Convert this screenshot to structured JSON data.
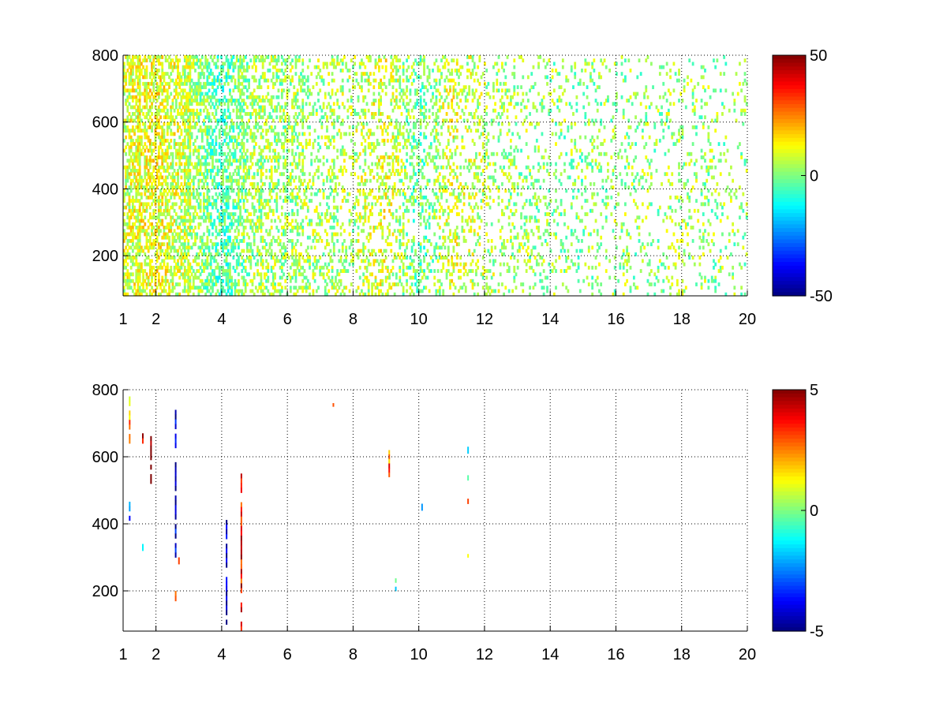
{
  "chart_data": [
    {
      "type": "heatmap",
      "title": "",
      "xlabel": "",
      "ylabel": "",
      "xlim": [
        1,
        20
      ],
      "ylim": [
        80,
        800
      ],
      "xticks": [
        1,
        2,
        4,
        6,
        8,
        10,
        12,
        14,
        16,
        18,
        20
      ],
      "yticks": [
        200,
        400,
        600,
        800
      ],
      "grid": true,
      "colormap": "jet",
      "clim": [
        -50,
        50
      ],
      "colorbar_ticks": [
        -50,
        0,
        50
      ],
      "colorbar_labels": [
        "-50",
        "0",
        "50"
      ],
      "xtick_labels": [
        "1",
        "2",
        "4",
        "6",
        "8",
        "10",
        "12",
        "14",
        "16",
        "18",
        "20"
      ],
      "ytick_labels": [
        "200",
        "400",
        "600",
        "800"
      ],
      "density_profile": [
        [
          1,
          0.7
        ],
        [
          2,
          0.66
        ],
        [
          3,
          0.62
        ],
        [
          4,
          0.58
        ],
        [
          5,
          0.5
        ],
        [
          6,
          0.42
        ],
        [
          7,
          0.3
        ],
        [
          8,
          0.26
        ],
        [
          9,
          0.34
        ],
        [
          10,
          0.3
        ],
        [
          11,
          0.32
        ],
        [
          12,
          0.24
        ],
        [
          13,
          0.2
        ],
        [
          14,
          0.17
        ],
        [
          15,
          0.16
        ],
        [
          16,
          0.14
        ],
        [
          17,
          0.12
        ],
        [
          18,
          0.16
        ],
        [
          19,
          0.14
        ],
        [
          20,
          0.1
        ]
      ],
      "value_profile": [
        [
          1,
          8
        ],
        [
          2,
          12
        ],
        [
          3,
          6
        ],
        [
          4,
          -6
        ],
        [
          5,
          4
        ],
        [
          6,
          3
        ],
        [
          7,
          4
        ],
        [
          8,
          5
        ],
        [
          9,
          10
        ],
        [
          10,
          -3
        ],
        [
          11,
          9
        ],
        [
          12,
          5
        ],
        [
          13,
          3
        ],
        [
          14,
          2
        ],
        [
          15,
          1
        ],
        [
          16,
          3
        ],
        [
          17,
          2
        ],
        [
          18,
          4
        ],
        [
          19,
          2
        ],
        [
          20,
          3
        ]
      ]
    },
    {
      "type": "heatmap",
      "title": "",
      "xlabel": "",
      "ylabel": "",
      "xlim": [
        1,
        20
      ],
      "ylim": [
        80,
        800
      ],
      "xticks": [
        1,
        2,
        4,
        6,
        8,
        10,
        12,
        14,
        16,
        18,
        20
      ],
      "yticks": [
        200,
        400,
        600,
        800
      ],
      "grid": true,
      "colormap": "jet",
      "clim": [
        -5,
        5
      ],
      "colorbar_ticks": [
        -5,
        0,
        5
      ],
      "colorbar_labels": [
        "-5",
        "0",
        "5"
      ],
      "xtick_labels": [
        "1",
        "2",
        "4",
        "6",
        "8",
        "10",
        "12",
        "14",
        "16",
        "18",
        "20"
      ],
      "ytick_labels": [
        "200",
        "400",
        "600",
        "800"
      ],
      "streaks": [
        {
          "x": 1.2,
          "y0": 640,
          "y1": 780,
          "value": 2
        },
        {
          "x": 1.2,
          "y0": 410,
          "y1": 480,
          "value": -3
        },
        {
          "x": 1.6,
          "y0": 320,
          "y1": 340,
          "value": -2
        },
        {
          "x": 1.6,
          "y0": 640,
          "y1": 670,
          "value": 4
        },
        {
          "x": 1.85,
          "y0": 520,
          "y1": 690,
          "value": 5
        },
        {
          "x": 2.6,
          "y0": 300,
          "y1": 740,
          "value": -4
        },
        {
          "x": 2.6,
          "y0": 170,
          "y1": 200,
          "value": 3
        },
        {
          "x": 2.7,
          "y0": 280,
          "y1": 300,
          "value": 4
        },
        {
          "x": 4.15,
          "y0": 100,
          "y1": 440,
          "value": -5
        },
        {
          "x": 4.6,
          "y0": 80,
          "y1": 550,
          "value": 4
        },
        {
          "x": 7.4,
          "y0": 750,
          "y1": 760,
          "value": 2
        },
        {
          "x": 9.1,
          "y0": 540,
          "y1": 620,
          "value": 3
        },
        {
          "x": 9.3,
          "y0": 200,
          "y1": 250,
          "value": -1
        },
        {
          "x": 10.1,
          "y0": 440,
          "y1": 460,
          "value": -1
        },
        {
          "x": 11.5,
          "y0": 610,
          "y1": 630,
          "value": -1
        },
        {
          "x": 11.5,
          "y0": 530,
          "y1": 545,
          "value": 1
        },
        {
          "x": 11.5,
          "y0": 460,
          "y1": 475,
          "value": 2
        },
        {
          "x": 11.5,
          "y0": 300,
          "y1": 310,
          "value": 1
        }
      ]
    }
  ]
}
